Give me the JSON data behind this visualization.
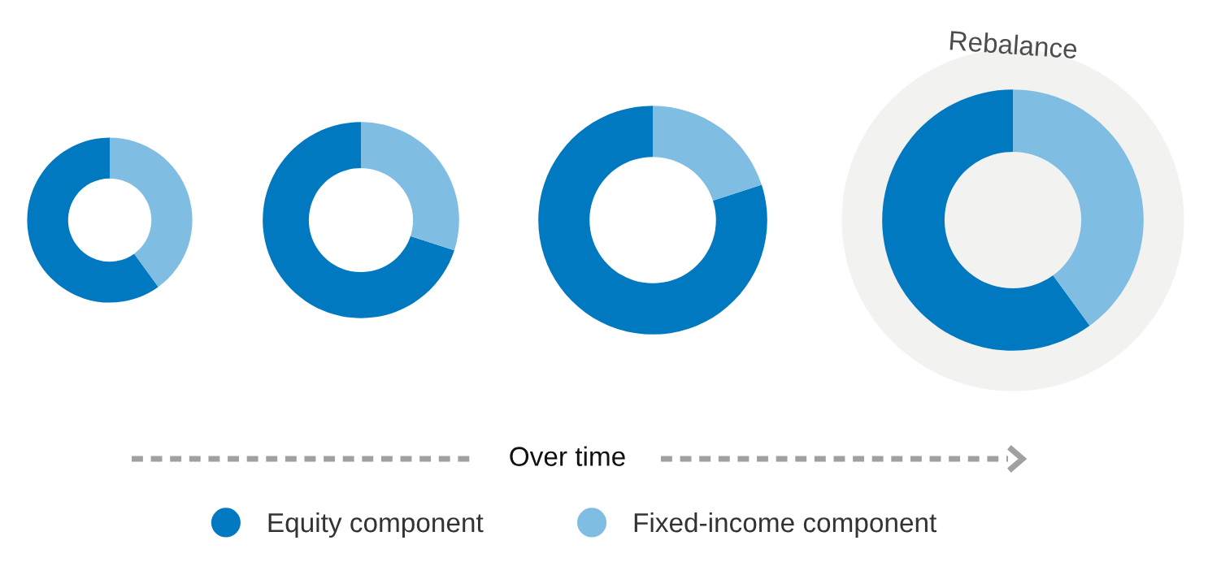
{
  "chart_data": [
    {
      "type": "donut",
      "categories": [
        "Equity component",
        "Fixed-income component"
      ],
      "values": [
        60,
        40
      ],
      "colors": [
        "#0079c1",
        "#80bde2"
      ],
      "legend": "bottom"
    },
    {
      "type": "donut",
      "categories": [
        null,
        null
      ],
      "values": [
        70,
        30
      ],
      "colors": [
        "#0079c1",
        "#80bde2"
      ]
    },
    {
      "type": "donut",
      "categories": [
        null,
        null
      ],
      "values": [
        80,
        20
      ],
      "colors": [
        "#0079c1",
        "#80bde2"
      ]
    },
    {
      "type": "donut",
      "categories": [
        null,
        null
      ],
      "values": [
        60,
        40
      ],
      "colors": [
        "#0079c1",
        "#80bde2"
      ],
      "annotations": [
        "Rebalance",
        "Over time"
      ]
    }
  ]
}
